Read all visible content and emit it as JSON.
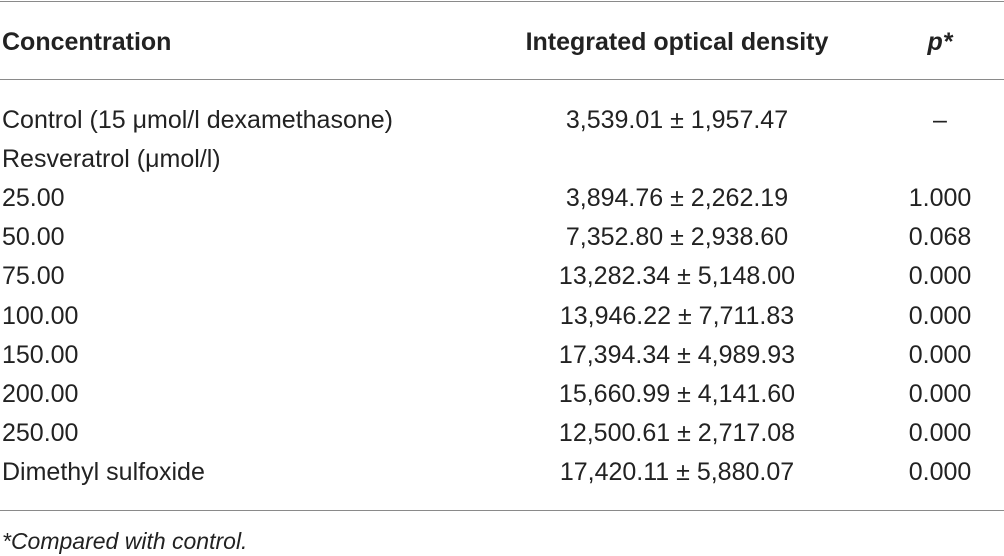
{
  "table": {
    "header": [
      "Concentration",
      "Integrated optical density",
      "p*"
    ],
    "rows": [
      [
        "Control (15 μmol/l dexamethasone)",
        "3,539.01 ± 1,957.47",
        "–"
      ],
      [
        "Resveratrol (μmol/l)"
      ],
      [
        "25.00",
        "3,894.76 ± 2,262.19",
        "1.000"
      ],
      [
        "50.00",
        "7,352.80 ± 2,938.60",
        "0.068"
      ],
      [
        "75.00",
        "13,282.34 ± 5,148.00",
        "0.000"
      ],
      [
        "100.00",
        "13,946.22 ± 7,711.83",
        "0.000"
      ],
      [
        "150.00",
        "17,394.34 ± 4,989.93",
        "0.000"
      ],
      [
        "200.00",
        "15,660.99 ± 4,141.60",
        "0.000"
      ],
      [
        "250.00",
        "12,500.61 ± 2,717.08",
        "0.000"
      ],
      [
        "Dimethyl sulfoxide",
        "17,420.11 ± 5,880.07",
        "0.000"
      ]
    ],
    "footnote": "*Compared with control."
  }
}
